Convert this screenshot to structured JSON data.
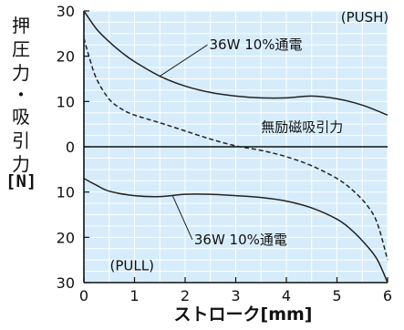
{
  "chart_data": {
    "type": "line",
    "title": "",
    "xlabel": "ストローク[mm]",
    "ylabel_chars": [
      "押",
      "圧",
      "力",
      "・",
      "吸",
      "引",
      "力"
    ],
    "ylabel_unit": "[N]",
    "x_ticks": [
      "0",
      "1",
      "2",
      "3",
      "4",
      "5",
      "6"
    ],
    "y_ticks": [
      "30",
      "20",
      "10",
      "0",
      "10",
      "20",
      "30"
    ],
    "xlim": [
      0,
      6
    ],
    "ylim": [
      -30,
      30
    ],
    "grid": true,
    "background_color": "#d6ecfa",
    "regions": {
      "push": "(PUSH)",
      "pull": "(PULL)"
    },
    "series": [
      {
        "name": "36W 10%通電",
        "style": "solid",
        "x": [
          0,
          0.25,
          0.5,
          0.75,
          1,
          1.5,
          2,
          2.5,
          3,
          3.5,
          4,
          4.5,
          5,
          5.5,
          6
        ],
        "y": [
          30,
          26,
          23.2,
          20.8,
          18.8,
          15.6,
          13.4,
          12.0,
          11.2,
          10.8,
          10.8,
          11.2,
          10.6,
          9.2,
          7.0
        ]
      },
      {
        "name": "無励磁吸引力",
        "style": "dashed",
        "x": [
          0,
          0.1,
          0.25,
          0.5,
          0.75,
          1,
          1.5,
          2,
          2.5,
          3,
          3.5,
          4,
          4.5,
          5,
          5.3,
          5.6,
          5.8,
          6
        ],
        "y": [
          24,
          20,
          15,
          10.5,
          8.3,
          7.0,
          5.3,
          3.5,
          1.7,
          0.2,
          -0.8,
          -2.2,
          -4.2,
          -7.0,
          -9.5,
          -13,
          -17,
          -25
        ]
      },
      {
        "name": "36W 10%通電",
        "style": "solid",
        "x": [
          0,
          0.25,
          0.5,
          1,
          1.5,
          2,
          2.5,
          3,
          3.5,
          4,
          4.5,
          5,
          5.3,
          5.6,
          5.8,
          6
        ],
        "y": [
          -7.0,
          -8.5,
          -9.8,
          -10.8,
          -11.0,
          -10.5,
          -10.5,
          -10.8,
          -11.2,
          -12.0,
          -13.5,
          -16.0,
          -18.5,
          -22,
          -25,
          -30
        ]
      }
    ],
    "annotations": [
      {
        "text": "36W 10%通電",
        "target_series": 0,
        "target_x": 1.5,
        "label_x": 2.55,
        "label_y": 21.5
      },
      {
        "text": "無励磁吸引力",
        "target_series": 1,
        "target_x": 2.4,
        "label_x": 3.05,
        "label_y": 3.3
      },
      {
        "text": "36W 10%通電",
        "target_series": 2,
        "target_x": 1.75,
        "label_x": 2.25,
        "label_y": -21.5
      }
    ]
  }
}
